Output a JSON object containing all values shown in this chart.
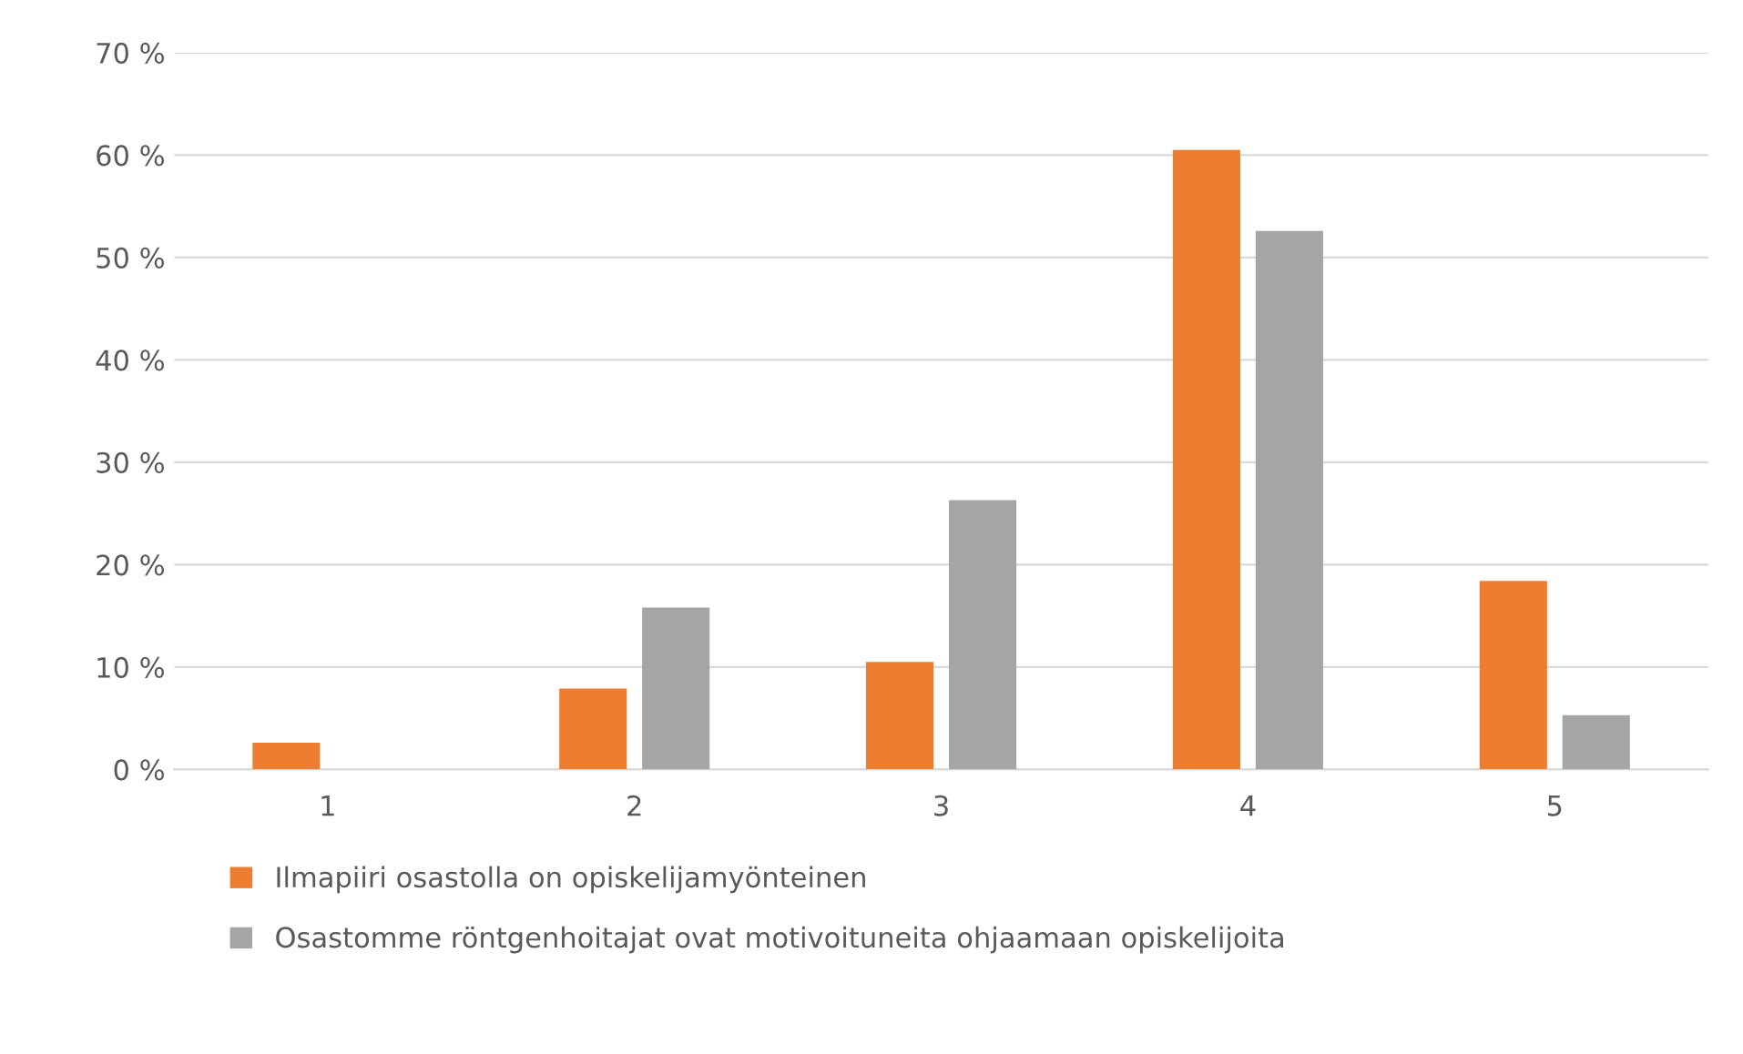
{
  "chart_data": {
    "type": "bar",
    "categories": [
      "1",
      "2",
      "3",
      "4",
      "5"
    ],
    "series": [
      {
        "name": "Ilmapiiri osastolla on opiskelijamyönteinen",
        "color": "#ed7d31",
        "values": [
          2.6,
          7.9,
          10.5,
          60.5,
          18.4
        ]
      },
      {
        "name": "Osastomme röntgenhoitajat ovat motivoituneita ohjaamaan opiskelijoita",
        "color": "#a5a5a5",
        "values": [
          0,
          15.8,
          26.3,
          52.6,
          5.3
        ]
      }
    ],
    "ylim": [
      0,
      70
    ],
    "yticks": [
      {
        "value": 0,
        "label": "0 %"
      },
      {
        "value": 10,
        "label": "10 %"
      },
      {
        "value": 20,
        "label": "20 %"
      },
      {
        "value": 30,
        "label": "30 %"
      },
      {
        "value": 40,
        "label": "40 %"
      },
      {
        "value": 50,
        "label": "50 %"
      },
      {
        "value": 60,
        "label": "60 %"
      },
      {
        "value": 70,
        "label": "70 %"
      }
    ],
    "grid": "y",
    "legend": "bottom"
  }
}
